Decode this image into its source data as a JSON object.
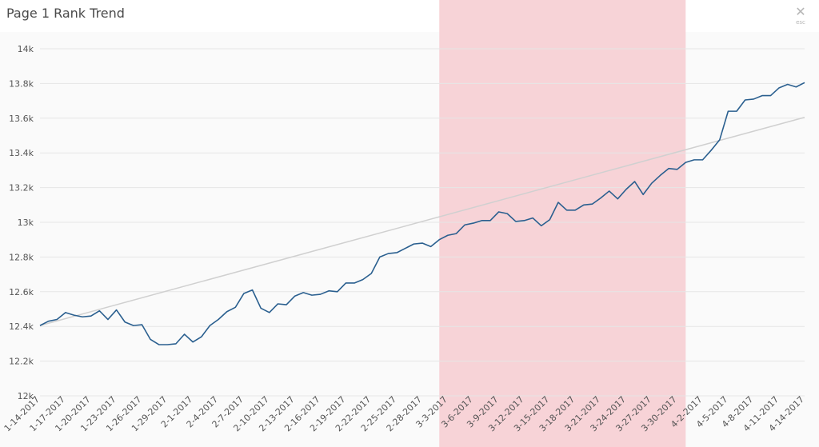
{
  "modal": {
    "title": "Page 1 Rank Trend",
    "close_icon": "close-icon",
    "close_hint": "esc"
  },
  "colors": {
    "line": "#2a5f8f",
    "trend": "#d0d0d0",
    "highlight": "#f7d3d7",
    "grid": "#e6e6e6",
    "plot_bg": "#fafafa"
  },
  "chart_data": {
    "type": "line",
    "title": "Page 1 Rank Trend",
    "xlabel": "",
    "ylabel": "",
    "ylim": [
      12000,
      14000
    ],
    "yticks": [
      12000,
      12200,
      12400,
      12600,
      12800,
      13000,
      13200,
      13400,
      13600,
      13800,
      14000
    ],
    "ytick_labels": [
      "12k",
      "12.2k",
      "12.4k",
      "12.6k",
      "12.8k",
      "13k",
      "13.2k",
      "13.4k",
      "13.6k",
      "13.8k",
      "14k"
    ],
    "x_start": "2017-01-14",
    "xtick_labels": [
      "1-14-2017",
      "1-17-2017",
      "1-20-2017",
      "1-23-2017",
      "1-26-2017",
      "1-29-2017",
      "2-1-2017",
      "2-4-2017",
      "2-7-2017",
      "2-10-2017",
      "2-13-2017",
      "2-16-2017",
      "2-19-2017",
      "2-22-2017",
      "2-25-2017",
      "2-28-2017",
      "3-3-2017",
      "3-6-2017",
      "3-9-2017",
      "3-12-2017",
      "3-15-2017",
      "3-18-2017",
      "3-21-2017",
      "3-24-2017",
      "3-27-2017",
      "3-30-2017",
      "4-2-2017",
      "4-5-2017",
      "4-8-2017",
      "4-11-2017",
      "4-14-2017"
    ],
    "highlight_range": {
      "from": "2017-03-02",
      "to": "2017-03-31"
    },
    "grid": true,
    "series": [
      {
        "values": [
          12405,
          12430,
          12440,
          12480,
          12465,
          12455,
          12460,
          12490,
          12440,
          12495,
          12425,
          12405,
          12410,
          12325,
          12295,
          12295,
          12300,
          12355,
          12310,
          12340,
          12405,
          12440,
          12485,
          12510,
          12590,
          12610,
          12505,
          12480,
          12530,
          12525,
          12575,
          12595,
          12580,
          12585,
          12605,
          12600,
          12650,
          12650,
          12670,
          12705,
          12800,
          12820,
          12825,
          12850,
          12875,
          12880,
          12860,
          12900,
          12925,
          12935,
          12985,
          12995,
          13010,
          13010,
          13060,
          13050,
          13005,
          13010,
          13025,
          12980,
          13015,
          13115,
          13070,
          13070,
          13100,
          13105,
          13140,
          13180,
          13135,
          13190,
          13235,
          13160,
          13225,
          13270,
          13310,
          13305,
          13345,
          13360,
          13360,
          13415,
          13475,
          13640,
          13640,
          13705,
          13710,
          13730,
          13730,
          13775,
          13795,
          13780,
          13805
        ]
      },
      {
        "type": "trend",
        "start": 12405,
        "end": 13605
      }
    ]
  }
}
